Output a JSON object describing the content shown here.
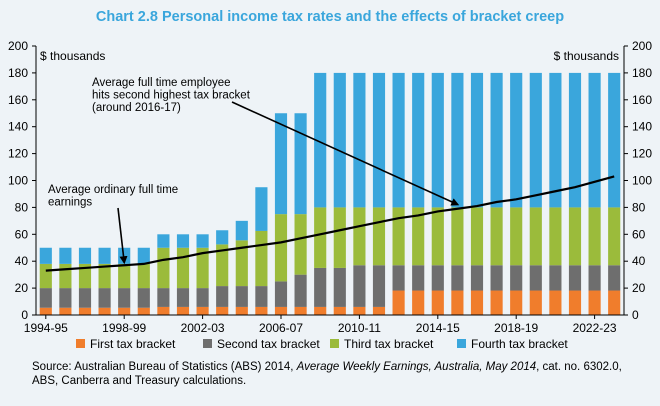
{
  "chart_data": {
    "type": "bar",
    "stacked": true,
    "title": "Chart 2.8 Personal income tax rates and the effects of bracket creep",
    "ylabel_left": "$ thousands",
    "ylabel_right": "$ thousands",
    "ylim": [
      0,
      200
    ],
    "yticks": [
      0,
      20,
      40,
      60,
      80,
      100,
      120,
      140,
      160,
      180,
      200
    ],
    "grid": false,
    "legend_position": "bottom",
    "x_tick_labels": [
      "1994-95",
      "1998-99",
      "2002-03",
      "2006-07",
      "2010-11",
      "2014-15",
      "2018-19",
      "2022-23"
    ],
    "categories": [
      "1994-95",
      "1995-96",
      "1996-97",
      "1997-98",
      "1998-99",
      "1999-00",
      "2000-01",
      "2001-02",
      "2002-03",
      "2003-04",
      "2004-05",
      "2005-06",
      "2006-07",
      "2007-08",
      "2008-09",
      "2009-10",
      "2010-11",
      "2011-12",
      "2012-13",
      "2013-14",
      "2014-15",
      "2015-16",
      "2016-17",
      "2017-18",
      "2018-19",
      "2019-20",
      "2020-21",
      "2021-22",
      "2022-23",
      "2023-24"
    ],
    "series": [
      {
        "name": "First tax bracket",
        "color": "#f07d2c",
        "values": [
          5.4,
          5.4,
          5.4,
          5.4,
          5.4,
          5.4,
          6,
          6,
          6,
          6,
          6,
          6,
          6,
          6,
          6,
          6,
          6,
          6,
          18.2,
          18.2,
          18.2,
          18.2,
          18.2,
          18.2,
          18.2,
          18.2,
          18.2,
          18.2,
          18.2,
          18.2
        ]
      },
      {
        "name": "Second tax bracket",
        "color": "#6e6e6e",
        "values": [
          14.6,
          14.6,
          14.6,
          14.6,
          14.6,
          14.6,
          14,
          14,
          14,
          15.5,
          15.5,
          15.5,
          19,
          24,
          29,
          29,
          31,
          31,
          18.8,
          18.8,
          18.8,
          18.8,
          18.8,
          18.8,
          18.8,
          18.8,
          18.8,
          18.8,
          18.8,
          18.8
        ]
      },
      {
        "name": "Third tax bracket",
        "color": "#9bbb3b",
        "values": [
          18,
          18,
          18,
          18,
          18,
          18,
          30,
          30,
          30,
          31,
          34,
          41,
          50,
          45,
          45,
          45,
          43,
          43,
          43,
          43,
          43,
          43,
          43,
          43,
          43,
          43,
          43,
          43,
          43,
          43
        ]
      },
      {
        "name": "Fourth tax bracket",
        "color": "#3aa6dc",
        "values": [
          12,
          12,
          12,
          12,
          12,
          12,
          10,
          10,
          10,
          10.5,
          14.5,
          32.5,
          75,
          75,
          100,
          100,
          100,
          100,
          100,
          100,
          100,
          100,
          100,
          100,
          100,
          100,
          100,
          100,
          100,
          100
        ]
      }
    ],
    "line_series": {
      "name": "Average full time earnings",
      "color": "#000000",
      "values": [
        33,
        34,
        35,
        36,
        37,
        38,
        41,
        43,
        46,
        48,
        50,
        52,
        54,
        57,
        60,
        63,
        66,
        69,
        72,
        74,
        77,
        79,
        81,
        84,
        86,
        89,
        92,
        95,
        99,
        103
      ]
    },
    "annotations": [
      {
        "text_lines": [
          "Average ordinary full time",
          "earnings"
        ],
        "target_category": "1998-99",
        "target_value": 37
      },
      {
        "text_lines": [
          "Average full time employee",
          "hits second highest tax bracket",
          "(around 2016-17)"
        ],
        "target_category": "2015-16",
        "target_value": 80
      }
    ]
  },
  "source": {
    "prefix": "Source: Australian Bureau of Statistics (ABS) 2014, ",
    "publication": "Average Weekly Earnings, Australia, May 2014",
    "suffix": ", cat. no. 6302.0, ABS, Canberra and Treasury calculations."
  }
}
